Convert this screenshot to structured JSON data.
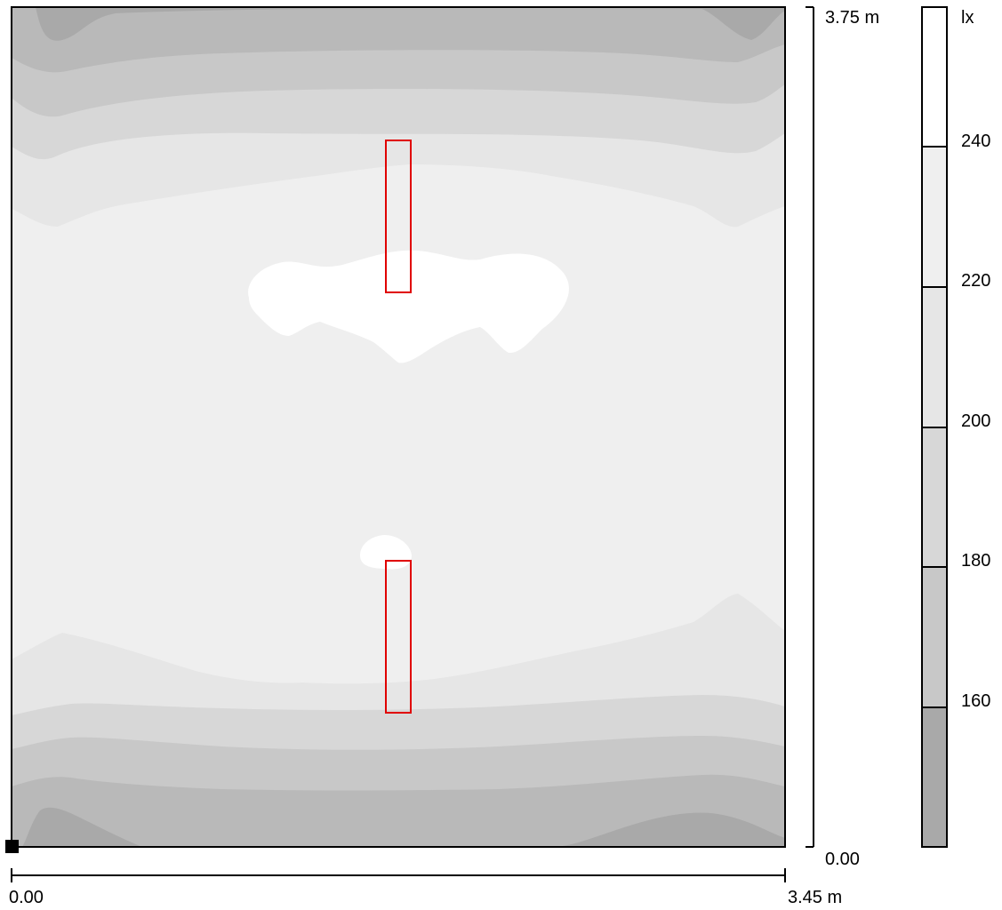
{
  "plot": {
    "y_top_label": "3.75 m",
    "y_bottom_label": "0.00",
    "x_left_label": "0.00",
    "x_right_label": "3.45 m"
  },
  "legend": {
    "unit": "lx",
    "ticks": [
      "240",
      "220",
      "200",
      "180",
      "160"
    ]
  },
  "colors": {
    "band_1": "#a9a9a9",
    "band_2": "#b9b9b9",
    "band_3": "#c8c8c8",
    "band_4": "#d7d7d7",
    "band_5": "#e6e6e6",
    "band_6": "#efefef",
    "band_7": "#ffffff",
    "luminaire": "#e00000"
  }
}
